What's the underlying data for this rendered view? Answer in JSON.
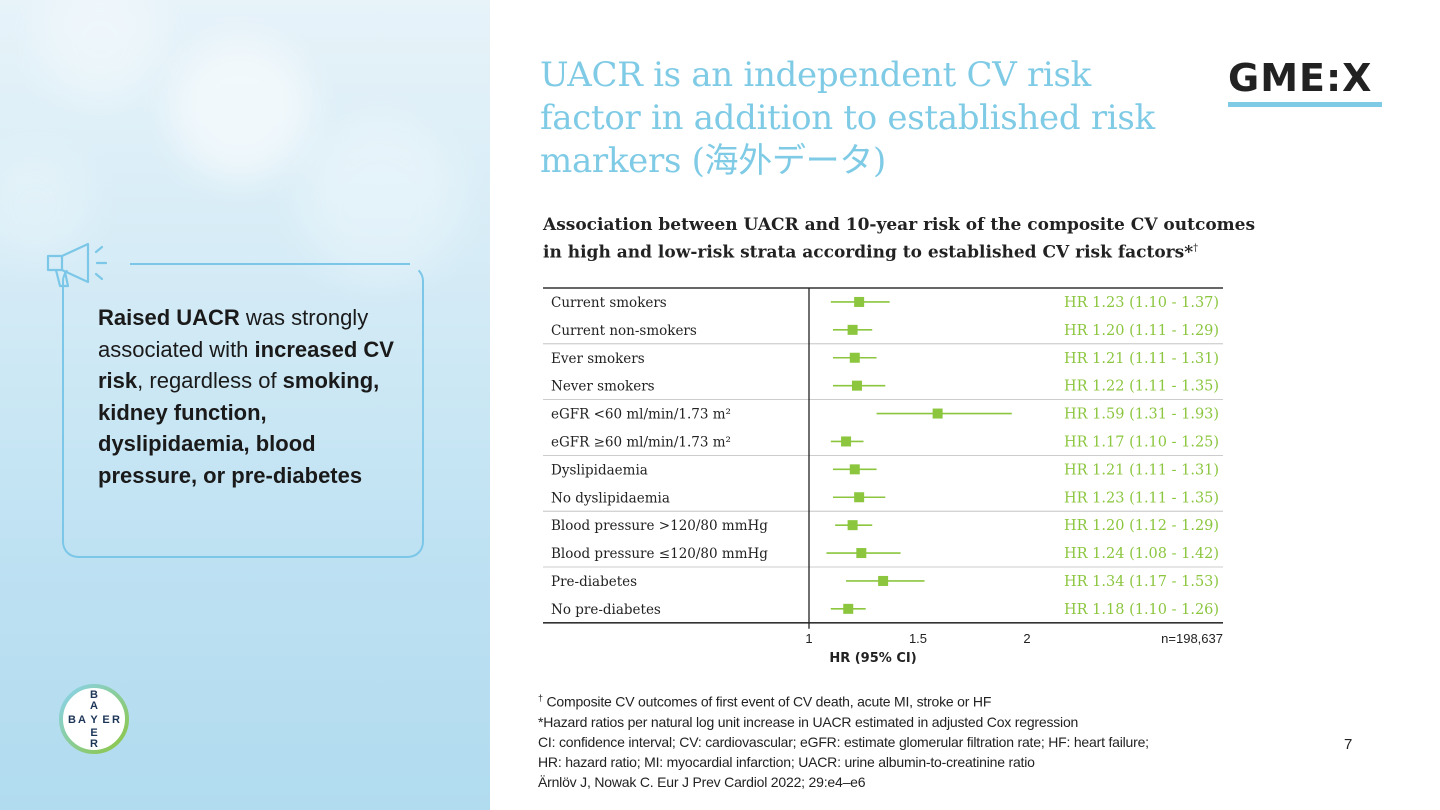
{
  "slide": {
    "title": "UACR is an independent CV risk factor in addition to established risk markers (海外データ)",
    "logo_text": "GME:X",
    "brand_logo": "BAYER",
    "page_number": "7"
  },
  "callout": {
    "icon": "megaphone-icon",
    "parts": [
      {
        "text": "Raised UACR",
        "bold": true
      },
      {
        "text": " was strongly associated with ",
        "bold": false
      },
      {
        "text": "increased CV risk",
        "bold": true
      },
      {
        "text": ", regardless of ",
        "bold": false
      },
      {
        "text": "smoking, kidney function, dyslipidaemia, blood pressure, or pre-diabetes",
        "bold": true
      }
    ]
  },
  "chart_subtitle": {
    "text": "Association between UACR and 10-year risk of the composite CV outcomes in high and low-risk strata according to established CV risk factors*",
    "dagger": "†"
  },
  "chart_data": {
    "type": "scatter",
    "subtype": "forest_plot",
    "title": "Association between UACR and 10-year risk of the composite CV outcomes in high and low-risk strata according to established CV risk factors*",
    "xlabel": "HR (95% CI)",
    "x_ticks": [
      "1",
      "1.5",
      "2"
    ],
    "xlim": [
      1,
      2
    ],
    "reference_line": 1,
    "n_label": "n=198,637",
    "color": "#8cc63f",
    "rows": [
      {
        "label": "Current smokers",
        "hr": 1.23,
        "low": 1.1,
        "high": 1.37,
        "text": "HR 1.23 (1.10 - 1.37)"
      },
      {
        "label": "Current non-smokers",
        "hr": 1.2,
        "low": 1.11,
        "high": 1.29,
        "text": "HR 1.20 (1.11 - 1.29)"
      },
      {
        "label": "Ever smokers",
        "hr": 1.21,
        "low": 1.11,
        "high": 1.31,
        "text": "HR 1.21 (1.11 - 1.31)"
      },
      {
        "label": "Never smokers",
        "hr": 1.22,
        "low": 1.11,
        "high": 1.35,
        "text": "HR 1.22 (1.11 - 1.35)"
      },
      {
        "label": "eGFR <60 ml/min/1.73 m²",
        "hr": 1.59,
        "low": 1.31,
        "high": 1.93,
        "text": "HR 1.59 (1.31 - 1.93)"
      },
      {
        "label": "eGFR ≥60 ml/min/1.73 m²",
        "hr": 1.17,
        "low": 1.1,
        "high": 1.25,
        "text": "HR 1.17 (1.10 - 1.25)"
      },
      {
        "label": "Dyslipidaemia",
        "hr": 1.21,
        "low": 1.11,
        "high": 1.31,
        "text": "HR 1.21 (1.11 - 1.31)"
      },
      {
        "label": "No dyslipidaemia",
        "hr": 1.23,
        "low": 1.11,
        "high": 1.35,
        "text": "HR 1.23 (1.11 - 1.35)"
      },
      {
        "label": "Blood pressure >120/80 mmHg",
        "hr": 1.2,
        "low": 1.12,
        "high": 1.29,
        "text": "HR 1.20 (1.12 - 1.29)"
      },
      {
        "label": "Blood pressure ≤120/80 mmHg",
        "hr": 1.24,
        "low": 1.08,
        "high": 1.42,
        "text": "HR 1.24 (1.08 - 1.42)"
      },
      {
        "label": "Pre-diabetes",
        "hr": 1.34,
        "low": 1.17,
        "high": 1.53,
        "text": "HR 1.34 (1.17 - 1.53)"
      },
      {
        "label": "No pre-diabetes",
        "hr": 1.18,
        "low": 1.1,
        "high": 1.26,
        "text": "HR 1.18 (1.10 - 1.26)"
      }
    ]
  },
  "footnotes": {
    "dagger_mark": "†",
    "line1": " Composite CV outcomes of first event of CV death, acute MI, stroke or HF",
    "line2": "*Hazard ratios per natural log unit increase in UACR estimated in adjusted Cox regression",
    "line3": "CI: confidence interval; CV: cardiovascular; eGFR: estimate glomerular filtration rate; HF: heart failure;",
    "line4": "HR: hazard ratio; MI: myocardial infarction; UACR: urine albumin-to-creatinine ratio",
    "line5": "Ärnlöv J, Nowak C. Eur J Prev Cardiol 2022; 29:e4–e6"
  }
}
